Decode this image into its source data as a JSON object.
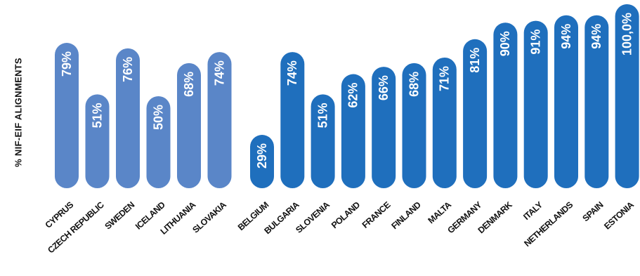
{
  "chart_data": {
    "type": "bar",
    "ylabel": "% NIF-EIF ALIGNMENTS",
    "ylim": [
      0,
      100
    ],
    "grid": false,
    "groups": [
      {
        "color": "#5a86c8",
        "categories": [
          "CYPRUS",
          "CZECH REPUBLIC",
          "SWEDEN",
          "ICELAND",
          "LITHUANIA",
          "SLOVAKIA"
        ],
        "values": [
          79,
          51,
          76,
          50,
          68,
          74
        ],
        "labels": [
          "79%",
          "51%",
          "76%",
          "50%",
          "68%",
          "74%"
        ]
      },
      {
        "color": "#1f6fbd",
        "categories": [
          "BELGIUM",
          "BULGARIA",
          "SLOVENIA",
          "POLAND",
          "FRANCE",
          "FINLAND",
          "MALTA",
          "GERMANY",
          "DENMARK",
          "ITALY",
          "NETHERLANDS",
          "SPAIN",
          "ESTONIA"
        ],
        "values": [
          29,
          74,
          51,
          62,
          66,
          68,
          71,
          81,
          90,
          91,
          94,
          94,
          100
        ],
        "labels": [
          "29%",
          "74%",
          "51%",
          "62%",
          "66%",
          "68%",
          "71%",
          "81%",
          "90%",
          "91%",
          "94%",
          "94%",
          "100,0%"
        ]
      }
    ]
  }
}
